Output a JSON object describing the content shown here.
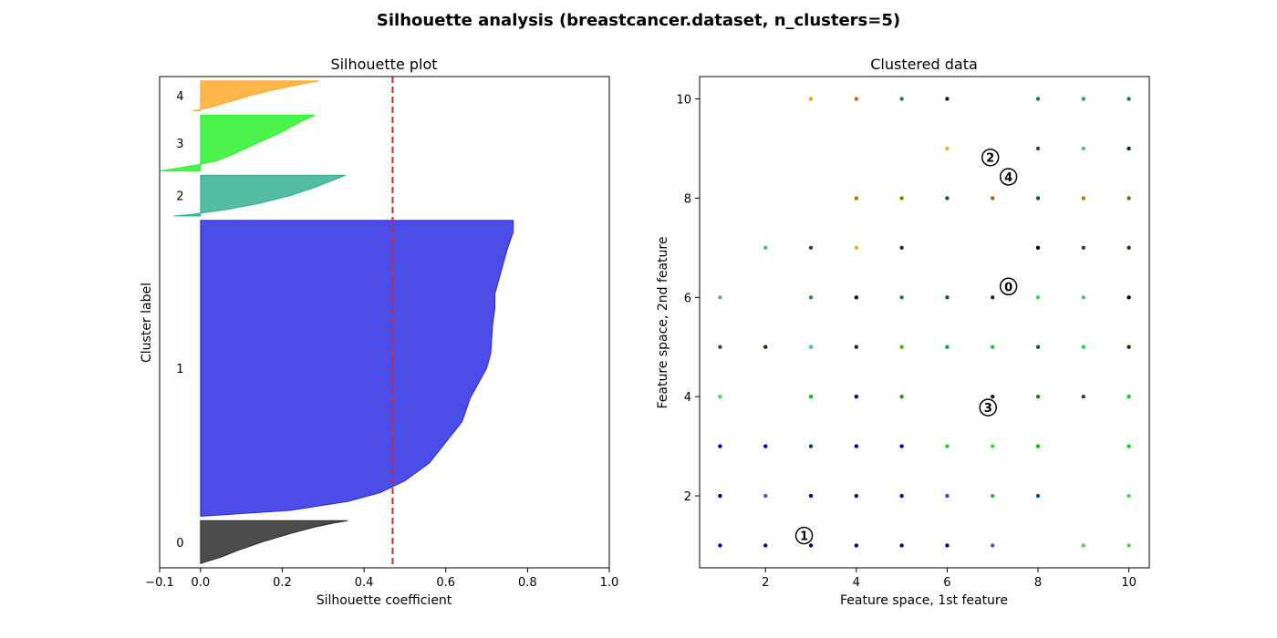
{
  "figure": {
    "suptitle": "Silhouette analysis (breastcancer.dataset, n_clusters=5)"
  },
  "chart_data": [
    {
      "type": "area",
      "title": "Silhouette plot",
      "xlabel": "Silhouette coefficient",
      "ylabel": "Cluster label",
      "xlim": [
        -0.1,
        1.0
      ],
      "xticks": [
        -0.1,
        0.0,
        0.2,
        0.4,
        0.6,
        0.8,
        1.0
      ],
      "xtick_labels": [
        "−0.1",
        "0.0",
        "0.2",
        "0.4",
        "0.6",
        "0.8",
        "1.0"
      ],
      "average_silhouette": 0.47,
      "average_line_color": "#d62728",
      "clusters": [
        {
          "label": "0",
          "color": "#000000",
          "size": 100,
          "max": 0.36,
          "min": 0.0,
          "profile": [
            [
              0.0,
              0.36
            ],
            [
              0.05,
              0.33
            ],
            [
              0.15,
              0.28
            ],
            [
              0.3,
              0.22
            ],
            [
              0.5,
              0.15
            ],
            [
              0.7,
              0.09
            ],
            [
              0.85,
              0.05
            ],
            [
              1.0,
              0.0
            ]
          ]
        },
        {
          "label": "1",
          "color": "#0000dd",
          "size": 690,
          "max": 0.765,
          "min": 0.0,
          "profile": [
            [
              0.0,
              0.765
            ],
            [
              0.04,
              0.765
            ],
            [
              0.06,
              0.76
            ],
            [
              0.1,
              0.75
            ],
            [
              0.2,
              0.73
            ],
            [
              0.25,
              0.72
            ],
            [
              0.3,
              0.72
            ],
            [
              0.35,
              0.715
            ],
            [
              0.45,
              0.71
            ],
            [
              0.5,
              0.7
            ],
            [
              0.55,
              0.68
            ],
            [
              0.6,
              0.66
            ],
            [
              0.68,
              0.64
            ],
            [
              0.75,
              0.6
            ],
            [
              0.82,
              0.56
            ],
            [
              0.88,
              0.5
            ],
            [
              0.92,
              0.44
            ],
            [
              0.95,
              0.36
            ],
            [
              0.98,
              0.22
            ],
            [
              1.0,
              0.0
            ]
          ]
        },
        {
          "label": "2",
          "color": "#0aa07a",
          "size": 95,
          "max": 0.355,
          "min": -0.065,
          "profile": [
            [
              0.0,
              0.355
            ],
            [
              0.1,
              0.33
            ],
            [
              0.3,
              0.28
            ],
            [
              0.5,
              0.22
            ],
            [
              0.7,
              0.14
            ],
            [
              0.85,
              0.06
            ],
            [
              0.93,
              0.0
            ],
            [
              0.97,
              -0.03
            ],
            [
              1.0,
              -0.065
            ]
          ]
        },
        {
          "label": "3",
          "color": "#00ee00",
          "size": 130,
          "max": 0.28,
          "min": -0.1,
          "profile": [
            [
              0.0,
              0.28
            ],
            [
              0.1,
              0.25
            ],
            [
              0.3,
              0.2
            ],
            [
              0.5,
              0.14
            ],
            [
              0.7,
              0.08
            ],
            [
              0.82,
              0.04
            ],
            [
              0.88,
              0.0
            ],
            [
              0.93,
              -0.04
            ],
            [
              1.0,
              -0.1
            ]
          ]
        },
        {
          "label": "4",
          "color": "#ff9900",
          "size": 70,
          "max": 0.29,
          "min": -0.02,
          "profile": [
            [
              0.0,
              0.29
            ],
            [
              0.1,
              0.25
            ],
            [
              0.3,
              0.18
            ],
            [
              0.5,
              0.12
            ],
            [
              0.7,
              0.07
            ],
            [
              0.9,
              0.02
            ],
            [
              1.0,
              -0.02
            ]
          ]
        }
      ]
    },
    {
      "type": "scatter",
      "title": "Clustered data",
      "xlabel": "Feature space, 1st feature",
      "ylabel": "Feature space, 2nd feature",
      "xlim": [
        0.55,
        10.45
      ],
      "ylim": [
        0.55,
        10.45
      ],
      "xticks": [
        2,
        4,
        6,
        8,
        10
      ],
      "yticks": [
        2,
        4,
        6,
        8,
        10
      ],
      "points": [
        [
          3,
          10,
          "#f0a020"
        ],
        [
          4,
          10,
          "#c07000"
        ],
        [
          5,
          10,
          "#108050"
        ],
        [
          6,
          10,
          "#003300"
        ],
        [
          8,
          10,
          "#108050"
        ],
        [
          9,
          10,
          "#20a060"
        ],
        [
          10,
          10,
          "#108050"
        ],
        [
          6,
          9,
          "#f0b030"
        ],
        [
          8,
          9,
          "#404040"
        ],
        [
          9,
          9,
          "#40c0a0"
        ],
        [
          10,
          9,
          "#003300"
        ],
        [
          4,
          8,
          "#b07000"
        ],
        [
          5,
          8,
          "#808000"
        ],
        [
          6,
          8,
          "#006030"
        ],
        [
          7,
          8,
          "#a06000"
        ],
        [
          8,
          8,
          "#006030"
        ],
        [
          9,
          8,
          "#c07000"
        ],
        [
          10,
          8,
          "#806000"
        ],
        [
          2,
          7,
          "#40c0a0"
        ],
        [
          3,
          7,
          "#404040"
        ],
        [
          4,
          7,
          "#f0b030"
        ],
        [
          5,
          7,
          "#303000"
        ],
        [
          8,
          7,
          "#000000"
        ],
        [
          9,
          7,
          "#404040"
        ],
        [
          10,
          7,
          "#403000"
        ],
        [
          1,
          6,
          "#40c0a0"
        ],
        [
          3,
          6,
          "#10a030"
        ],
        [
          4,
          6,
          "#002000"
        ],
        [
          5,
          6,
          "#108050"
        ],
        [
          6,
          6,
          "#006030"
        ],
        [
          7,
          6,
          "#203000"
        ],
        [
          8,
          6,
          "#30e030"
        ],
        [
          9,
          6,
          "#40c0a0"
        ],
        [
          10,
          6,
          "#000000"
        ],
        [
          1,
          5,
          "#404040"
        ],
        [
          2,
          5,
          "#103000"
        ],
        [
          3,
          5,
          "#40c0a0"
        ],
        [
          4,
          5,
          "#103020"
        ],
        [
          5,
          5,
          "#30c000"
        ],
        [
          6,
          5,
          "#10a050"
        ],
        [
          7,
          5,
          "#20c040"
        ],
        [
          8,
          5,
          "#106020"
        ],
        [
          9,
          5,
          "#20d040"
        ],
        [
          10,
          5,
          "#203000"
        ],
        [
          1,
          4,
          "#40e040"
        ],
        [
          3,
          4,
          "#10c010"
        ],
        [
          4,
          4,
          "#0000aa"
        ],
        [
          5,
          4,
          "#10a010"
        ],
        [
          7,
          4,
          "#202020"
        ],
        [
          8,
          4,
          "#108020"
        ],
        [
          9,
          4,
          "#404040"
        ],
        [
          10,
          4,
          "#10d010"
        ],
        [
          1,
          3,
          "#0000cc"
        ],
        [
          2,
          3,
          "#0000aa"
        ],
        [
          3,
          3,
          "#004060"
        ],
        [
          4,
          3,
          "#0000bb"
        ],
        [
          5,
          3,
          "#0000aa"
        ],
        [
          6,
          3,
          "#20d020"
        ],
        [
          7,
          3,
          "#30e030"
        ],
        [
          8,
          3,
          "#10c010"
        ],
        [
          10,
          3,
          "#10d010"
        ],
        [
          1,
          2,
          "#0000aa"
        ],
        [
          2,
          2,
          "#5050dd"
        ],
        [
          3,
          2,
          "#0000aa"
        ],
        [
          4,
          2,
          "#0000aa"
        ],
        [
          5,
          2,
          "#0000aa"
        ],
        [
          6,
          2,
          "#4040cc"
        ],
        [
          7,
          2,
          "#20c020"
        ],
        [
          8,
          2,
          "#0050a0"
        ],
        [
          10,
          2,
          "#40e040"
        ],
        [
          1,
          1,
          "#0000cc"
        ],
        [
          2,
          1,
          "#0000aa"
        ],
        [
          3,
          1,
          "#0000aa"
        ],
        [
          4,
          1,
          "#0000aa"
        ],
        [
          5,
          1,
          "#0000aa"
        ],
        [
          6,
          1,
          "#0000aa"
        ],
        [
          7,
          1,
          "#5050dd"
        ],
        [
          9,
          1,
          "#40e040"
        ],
        [
          10,
          1,
          "#40e040"
        ]
      ],
      "centers": [
        {
          "label": "0",
          "x": 7.35,
          "y": 6.22
        },
        {
          "label": "1",
          "x": 2.85,
          "y": 1.2
        },
        {
          "label": "2",
          "x": 6.95,
          "y": 8.82
        },
        {
          "label": "3",
          "x": 6.9,
          "y": 3.78
        },
        {
          "label": "4",
          "x": 7.35,
          "y": 8.43
        }
      ]
    }
  ]
}
